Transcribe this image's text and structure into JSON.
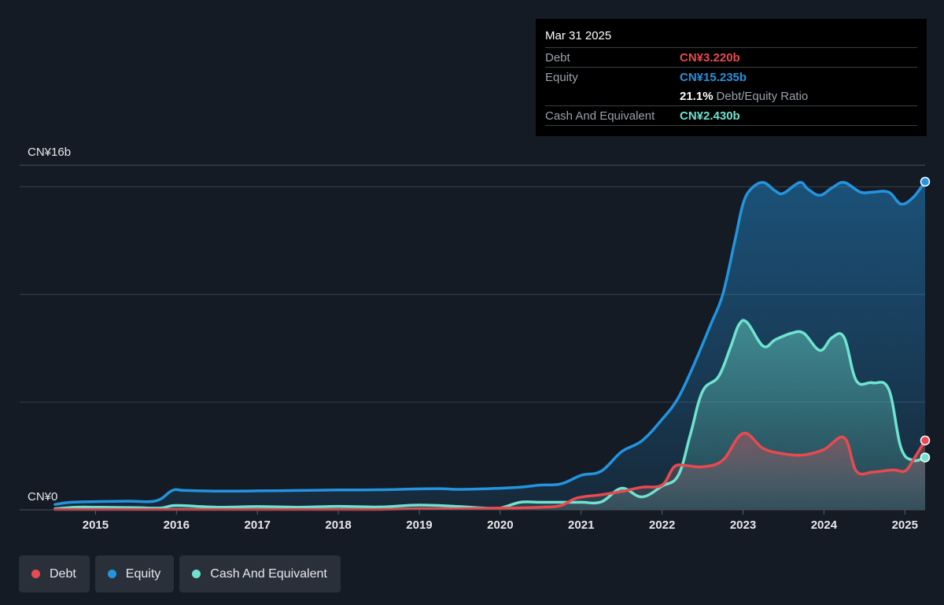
{
  "colors": {
    "debt": "#e84a4f",
    "equity": "#2394df",
    "cash": "#6fe3d0",
    "background": "#151b24",
    "grid": "#3a404a"
  },
  "tooltip": {
    "date": "Mar 31 2025",
    "rows": [
      {
        "label": "Debt",
        "value": "CN¥3.220b"
      },
      {
        "label": "Equity",
        "value": "CN¥15.235b"
      },
      {
        "label": "",
        "value": "21.1%",
        "extra": "Debt/Equity Ratio"
      },
      {
        "label": "Cash And Equivalent",
        "value": "CN¥2.430b"
      }
    ]
  },
  "legend": [
    {
      "name": "Debt",
      "color": "#e84a4f"
    },
    {
      "name": "Equity",
      "color": "#2394df"
    },
    {
      "name": "Cash And Equivalent",
      "color": "#6fe3d0"
    }
  ],
  "chart_data": {
    "type": "area",
    "y_axis_top_label": "CN¥16b",
    "y_axis_bottom_label": "CN¥0",
    "ylim": [
      0,
      16
    ],
    "xlim": [
      2014.5,
      2025.25
    ],
    "x_ticks": [
      "2015",
      "2016",
      "2017",
      "2018",
      "2019",
      "2020",
      "2021",
      "2022",
      "2023",
      "2024",
      "2025"
    ],
    "grid": true,
    "series": [
      {
        "name": "Equity",
        "key": "equity",
        "points": [
          [
            2014.5,
            0.25
          ],
          [
            2014.7,
            0.35
          ],
          [
            2015.0,
            0.38
          ],
          [
            2015.4,
            0.4
          ],
          [
            2015.75,
            0.42
          ],
          [
            2015.95,
            0.9
          ],
          [
            2016.1,
            0.9
          ],
          [
            2016.5,
            0.87
          ],
          [
            2017.0,
            0.88
          ],
          [
            2017.5,
            0.9
          ],
          [
            2018.0,
            0.92
          ],
          [
            2018.5,
            0.93
          ],
          [
            2019.0,
            0.97
          ],
          [
            2019.3,
            0.98
          ],
          [
            2019.5,
            0.95
          ],
          [
            2020.0,
            1.0
          ],
          [
            2020.25,
            1.05
          ],
          [
            2020.5,
            1.15
          ],
          [
            2020.75,
            1.2
          ],
          [
            2021.0,
            1.6
          ],
          [
            2021.25,
            1.8
          ],
          [
            2021.5,
            2.7
          ],
          [
            2021.75,
            3.2
          ],
          [
            2022.0,
            4.2
          ],
          [
            2022.2,
            5.2
          ],
          [
            2022.4,
            6.8
          ],
          [
            2022.6,
            8.6
          ],
          [
            2022.75,
            10.0
          ],
          [
            2022.9,
            12.5
          ],
          [
            2023.0,
            14.2
          ],
          [
            2023.1,
            14.9
          ],
          [
            2023.25,
            15.2
          ],
          [
            2023.4,
            14.8
          ],
          [
            2023.5,
            14.7
          ],
          [
            2023.7,
            15.2
          ],
          [
            2023.8,
            14.9
          ],
          [
            2023.95,
            14.6
          ],
          [
            2024.1,
            14.95
          ],
          [
            2024.25,
            15.2
          ],
          [
            2024.45,
            14.75
          ],
          [
            2024.6,
            14.75
          ],
          [
            2024.8,
            14.75
          ],
          [
            2024.95,
            14.2
          ],
          [
            2025.1,
            14.5
          ],
          [
            2025.25,
            15.235
          ]
        ]
      },
      {
        "name": "Cash And Equivalent",
        "key": "cash",
        "points": [
          [
            2014.5,
            0.05
          ],
          [
            2014.75,
            0.12
          ],
          [
            2015.0,
            0.12
          ],
          [
            2015.5,
            0.1
          ],
          [
            2015.8,
            0.08
          ],
          [
            2016.0,
            0.2
          ],
          [
            2016.5,
            0.12
          ],
          [
            2017.0,
            0.15
          ],
          [
            2017.5,
            0.12
          ],
          [
            2018.0,
            0.16
          ],
          [
            2018.5,
            0.13
          ],
          [
            2019.0,
            0.22
          ],
          [
            2019.5,
            0.15
          ],
          [
            2019.8,
            0.08
          ],
          [
            2020.0,
            0.08
          ],
          [
            2020.25,
            0.35
          ],
          [
            2020.5,
            0.35
          ],
          [
            2020.75,
            0.35
          ],
          [
            2021.0,
            0.35
          ],
          [
            2021.25,
            0.37
          ],
          [
            2021.5,
            1.0
          ],
          [
            2021.75,
            0.6
          ],
          [
            2022.0,
            1.1
          ],
          [
            2022.2,
            1.6
          ],
          [
            2022.35,
            3.5
          ],
          [
            2022.5,
            5.5
          ],
          [
            2022.7,
            6.2
          ],
          [
            2022.85,
            7.6
          ],
          [
            2022.95,
            8.6
          ],
          [
            2023.05,
            8.7
          ],
          [
            2023.25,
            7.6
          ],
          [
            2023.4,
            7.9
          ],
          [
            2023.6,
            8.2
          ],
          [
            2023.75,
            8.2
          ],
          [
            2023.95,
            7.4
          ],
          [
            2024.1,
            8.0
          ],
          [
            2024.25,
            8.0
          ],
          [
            2024.4,
            6.0
          ],
          [
            2024.6,
            5.9
          ],
          [
            2024.8,
            5.6
          ],
          [
            2024.95,
            2.9
          ],
          [
            2025.1,
            2.3
          ],
          [
            2025.25,
            2.43
          ]
        ]
      },
      {
        "name": "Debt",
        "key": "debt",
        "points": [
          [
            2014.5,
            0.02
          ],
          [
            2015.0,
            0.02
          ],
          [
            2015.5,
            0.02
          ],
          [
            2016.0,
            0.02
          ],
          [
            2016.5,
            0.02
          ],
          [
            2017.0,
            0.02
          ],
          [
            2017.5,
            0.02
          ],
          [
            2018.0,
            0.02
          ],
          [
            2018.5,
            0.02
          ],
          [
            2019.0,
            0.05
          ],
          [
            2019.5,
            0.05
          ],
          [
            2020.0,
            0.08
          ],
          [
            2020.5,
            0.12
          ],
          [
            2020.75,
            0.2
          ],
          [
            2020.95,
            0.55
          ],
          [
            2021.25,
            0.7
          ],
          [
            2021.5,
            0.85
          ],
          [
            2021.75,
            1.05
          ],
          [
            2022.0,
            1.15
          ],
          [
            2022.15,
            2.0
          ],
          [
            2022.3,
            2.05
          ],
          [
            2022.5,
            2.0
          ],
          [
            2022.75,
            2.3
          ],
          [
            2023.0,
            3.55
          ],
          [
            2023.25,
            2.85
          ],
          [
            2023.5,
            2.6
          ],
          [
            2023.75,
            2.55
          ],
          [
            2024.0,
            2.8
          ],
          [
            2024.25,
            3.35
          ],
          [
            2024.4,
            1.8
          ],
          [
            2024.6,
            1.75
          ],
          [
            2024.85,
            1.85
          ],
          [
            2025.0,
            1.8
          ],
          [
            2025.1,
            2.3
          ],
          [
            2025.25,
            3.22
          ]
        ]
      }
    ]
  }
}
